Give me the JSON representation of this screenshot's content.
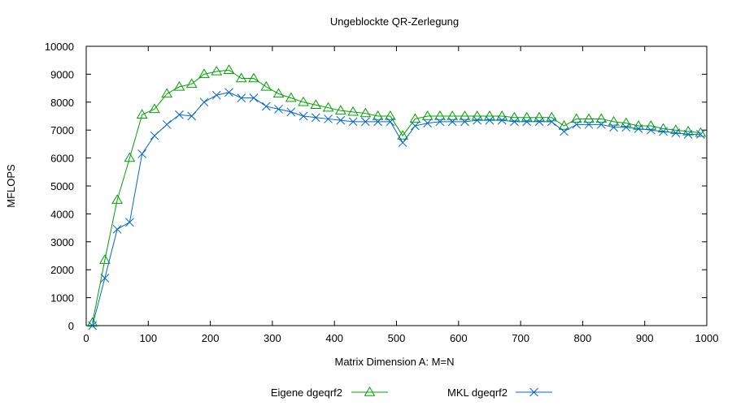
{
  "chart_data": {
    "type": "line",
    "title": "Ungeblockte QR-Zerlegung",
    "xlabel": "Matrix Dimension A: M=N",
    "ylabel": "MFLOPS",
    "xlim": [
      0,
      1000
    ],
    "ylim": [
      0,
      10000
    ],
    "x_ticks": [
      "0",
      "100",
      "200",
      "300",
      "400",
      "500",
      "600",
      "700",
      "800",
      "900",
      "1000"
    ],
    "y_ticks": [
      "0",
      "1000",
      "2000",
      "3000",
      "4000",
      "5000",
      "6000",
      "7000",
      "8000",
      "9000",
      "10000"
    ],
    "grid": false,
    "legend_position": "bottom",
    "x": [
      10,
      30,
      50,
      70,
      90,
      110,
      130,
      150,
      170,
      190,
      210,
      230,
      250,
      270,
      290,
      310,
      330,
      350,
      370,
      390,
      410,
      430,
      450,
      470,
      490,
      510,
      530,
      550,
      570,
      590,
      610,
      630,
      650,
      670,
      690,
      710,
      730,
      750,
      770,
      790,
      810,
      830,
      850,
      870,
      890,
      910,
      930,
      950,
      970,
      990
    ],
    "series": [
      {
        "name": "Eigene dgeqrf2",
        "color": "#00a000",
        "marker": "triangle",
        "values": [
          100,
          2350,
          4500,
          6000,
          7550,
          7750,
          8300,
          8550,
          8650,
          9000,
          9100,
          9150,
          8850,
          8850,
          8550,
          8300,
          8150,
          8000,
          7900,
          7800,
          7700,
          7650,
          7600,
          7500,
          7500,
          6800,
          7400,
          7500,
          7500,
          7500,
          7500,
          7500,
          7500,
          7500,
          7450,
          7450,
          7450,
          7450,
          7150,
          7400,
          7400,
          7400,
          7300,
          7250,
          7150,
          7150,
          7050,
          7000,
          6950,
          6900
        ]
      },
      {
        "name": "MKL dgeqrf2",
        "color": "#0066cc",
        "marker": "x",
        "values": [
          0,
          1700,
          3450,
          3700,
          6150,
          6800,
          7200,
          7550,
          7500,
          8000,
          8250,
          8350,
          8150,
          8150,
          7850,
          7750,
          7650,
          7500,
          7450,
          7400,
          7350,
          7300,
          7300,
          7300,
          7300,
          6550,
          7150,
          7250,
          7300,
          7300,
          7300,
          7350,
          7350,
          7350,
          7300,
          7300,
          7300,
          7300,
          6950,
          7200,
          7200,
          7200,
          7100,
          7100,
          7050,
          7000,
          6950,
          6900,
          6850,
          6850
        ]
      }
    ]
  }
}
